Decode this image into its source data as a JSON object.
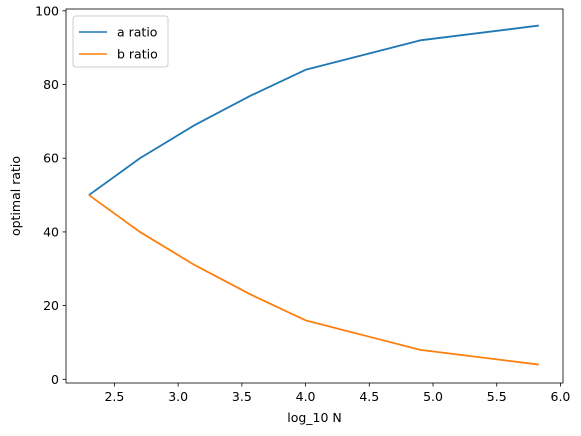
{
  "chart_data": {
    "type": "line",
    "title": "",
    "xlabel": "log_10 N",
    "ylabel": "optimal ratio",
    "xlim": [
      2.12,
      6.02
    ],
    "ylim": [
      -1,
      100.5
    ],
    "xticks": [
      2.5,
      3.0,
      3.5,
      4.0,
      4.5,
      5.0,
      5.5,
      6.0
    ],
    "xtick_labels": [
      "2.5",
      "3.0",
      "3.5",
      "4.0",
      "4.5",
      "5.0",
      "5.5",
      "6.0"
    ],
    "yticks": [
      0,
      20,
      40,
      60,
      80,
      100
    ],
    "ytick_labels": [
      "0",
      "20",
      "40",
      "60",
      "80",
      "100"
    ],
    "grid": false,
    "legend_position": "top-left",
    "x": [
      2.3,
      2.7,
      3.13,
      3.57,
      4.0,
      4.9,
      5.83
    ],
    "series": [
      {
        "name": "a ratio",
        "color": "#1f77b4",
        "values": [
          50,
          60,
          69,
          77,
          84,
          92,
          96
        ]
      },
      {
        "name": "b ratio",
        "color": "#ff7f0e",
        "values": [
          50,
          40,
          31,
          23,
          16,
          8,
          4
        ]
      }
    ]
  }
}
